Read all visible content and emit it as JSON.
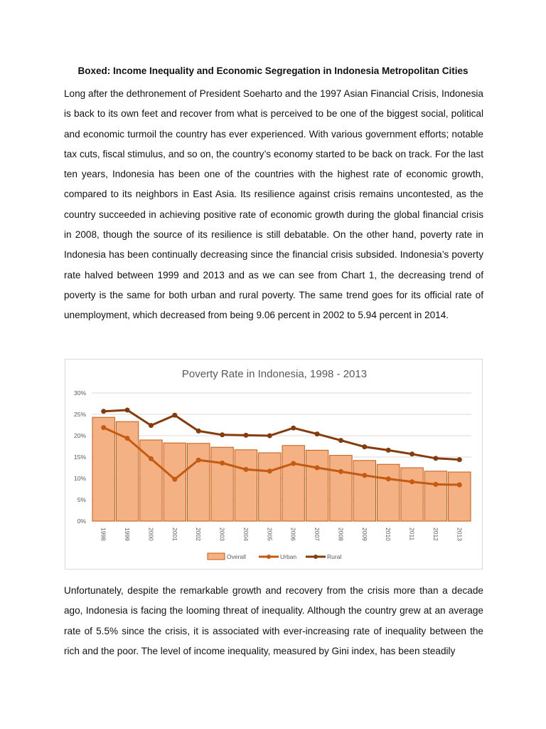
{
  "heading": "Boxed: Income Inequality and Economic Segregation in Indonesia Metropolitan Cities",
  "paragraph1": "Long after the dethronement of President Soeharto and the 1997 Asian Financial Crisis, Indonesia is back to its own feet and recover from what is perceived to be one of the biggest social, political and economic turmoil the country has ever experienced. With various government efforts; notable tax cuts, fiscal stimulus, and so on, the country’s economy started to be back on track. For the last ten years, Indonesia has been one of the countries with the highest rate of economic growth, compared to its neighbors in East Asia. Its resilience against crisis remains uncontested, as the country succeeded in achieving positive rate of economic growth during the global financial crisis in 2008, though the source of its resilience is still debatable. On the other hand, poverty rate in Indonesia has been continually decreasing since the financial crisis subsided. Indonesia’s poverty rate halved between 1999 and 2013 and as we can see from Chart 1, the decreasing trend of poverty is the same for both urban and rural poverty. The same trend goes for its official rate of unemployment, which decreased from being 9.06 percent in 2002 to 5.94 percent in 2014.",
  "paragraph2": "Unfortunately, despite the remarkable growth and recovery from the crisis more than a decade ago, Indonesia is facing the looming threat of inequality. Although the country grew at an average rate of 5.5% since the crisis, it is associated with ever-increasing rate of inequality between the rich and the poor. The level of income inequality, measured by Gini index, has been steadily",
  "chart_data": {
    "type": "bar+line",
    "title": "Poverty Rate in Indonesia, 1998 - 2013",
    "categories": [
      "1998",
      "1999",
      "2000",
      "2001",
      "2002",
      "2003",
      "2004",
      "2005",
      "2006",
      "2007",
      "2008",
      "2009",
      "2010",
      "2011",
      "2012",
      "2013"
    ],
    "y_ticks": [
      "0%",
      "5%",
      "10%",
      "15%",
      "20%",
      "25%",
      "30%"
    ],
    "ylim": [
      0,
      30
    ],
    "grid": true,
    "legend_position": "bottom",
    "series": [
      {
        "name": "Overall",
        "kind": "bar",
        "color": "#f4b183",
        "values": [
          24.3,
          23.3,
          19.0,
          18.3,
          18.2,
          17.3,
          16.7,
          16.0,
          17.7,
          16.6,
          15.4,
          14.2,
          13.3,
          12.5,
          11.7,
          11.5
        ]
      },
      {
        "name": "Urban",
        "kind": "line",
        "color": "#c55a11",
        "values": [
          21.9,
          19.4,
          14.6,
          9.8,
          14.3,
          13.6,
          12.1,
          11.7,
          13.5,
          12.5,
          11.6,
          10.7,
          9.9,
          9.2,
          8.6,
          8.5
        ]
      },
      {
        "name": "Rural",
        "kind": "line",
        "color": "#843c0c",
        "values": [
          25.7,
          26.0,
          22.4,
          24.8,
          21.1,
          20.2,
          20.1,
          20.0,
          21.8,
          20.4,
          18.9,
          17.4,
          16.6,
          15.7,
          14.7,
          14.4
        ]
      }
    ]
  }
}
